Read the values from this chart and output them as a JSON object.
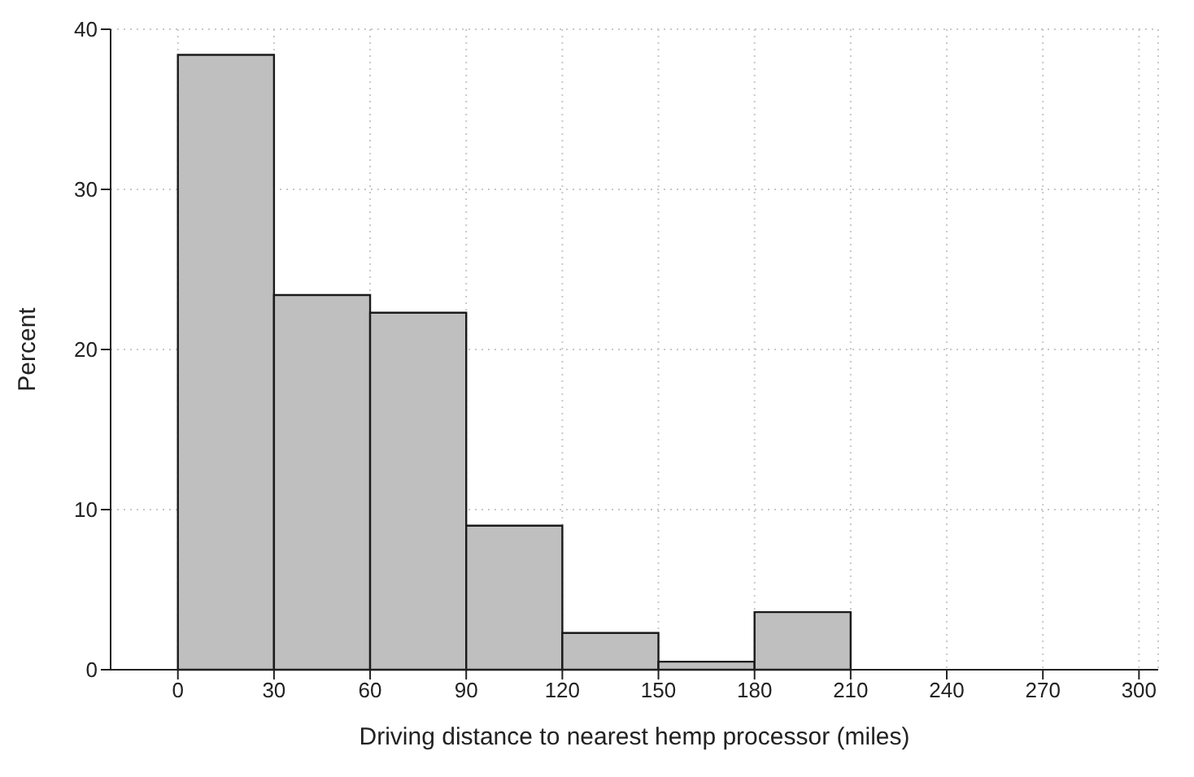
{
  "chart_data": {
    "type": "histogram",
    "xlabel": "Driving distance to nearest hemp processor (miles)",
    "ylabel": "Percent",
    "bins": [
      0,
      30,
      60,
      90,
      120,
      150,
      180,
      210
    ],
    "values": [
      38.4,
      23.4,
      22.3,
      9.0,
      2.3,
      0.5,
      3.6
    ],
    "color": "#bfbfbf",
    "xlim": [
      -21,
      306
    ],
    "xticks": [
      0,
      30,
      60,
      90,
      120,
      150,
      180,
      210,
      240,
      270,
      300
    ],
    "ylim": [
      0,
      40
    ],
    "yticks": [
      0,
      10,
      20,
      30,
      40
    ],
    "grid": true
  }
}
